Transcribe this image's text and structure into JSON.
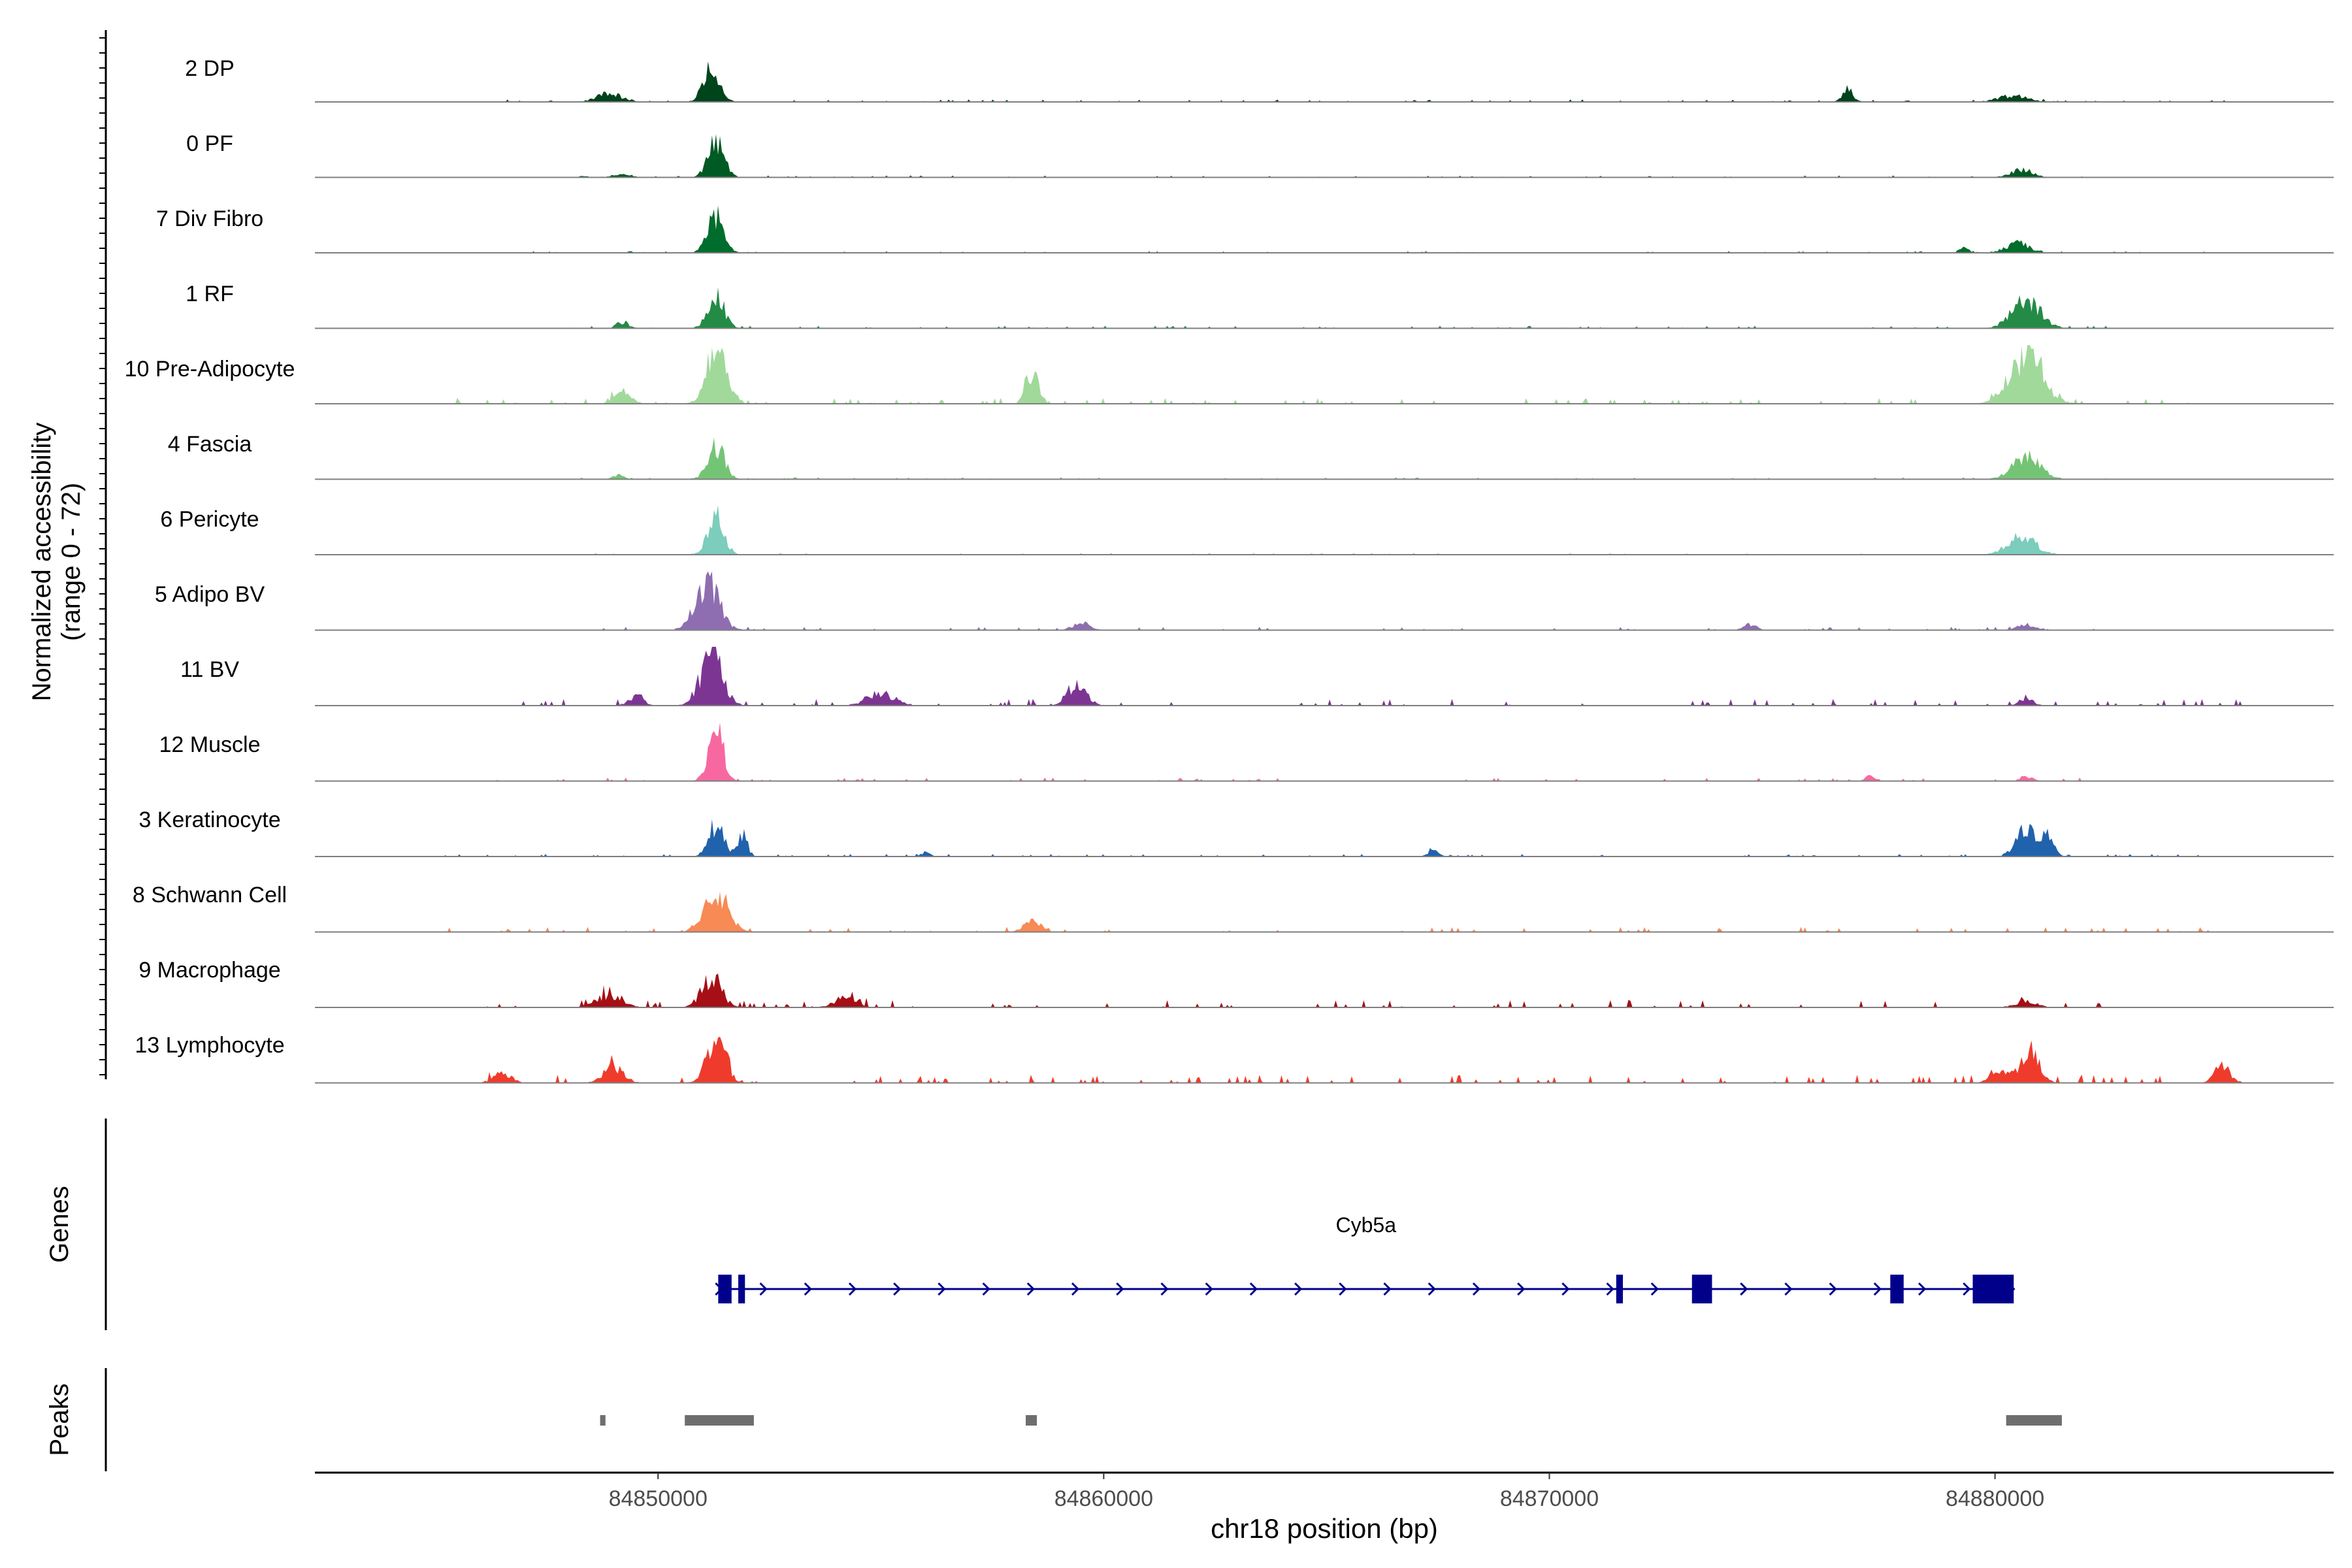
{
  "chart_data": {
    "type": "area",
    "ylabel_line1": "Normalized accessibility",
    "ylabel_line2": "(range 0 - 72)",
    "xlabel": "chr18 position (bp)",
    "xlim": [
      84842300,
      84887600
    ],
    "xticks": [
      84850000,
      84860000,
      84870000,
      84880000
    ],
    "xtick_labels": [
      "84850000",
      "84860000",
      "84870000",
      "84880000"
    ],
    "genes_label": "Genes",
    "peaks_label": "Peaks",
    "gene": {
      "name": "Cyb5a",
      "start": 84851350,
      "end": 84880420,
      "strand": "+",
      "exons": [
        [
          84851350,
          84851650
        ],
        [
          84851800,
          84851950
        ],
        [
          84871500,
          84871650
        ],
        [
          84873200,
          84873650
        ],
        [
          84877650,
          84877950
        ],
        [
          84879500,
          84880420
        ]
      ]
    },
    "peaks": [
      [
        84848700,
        84848820
      ],
      [
        84850600,
        84852150
      ],
      [
        84858250,
        84858500
      ],
      [
        84880250,
        84881500
      ]
    ],
    "tracks": [
      {
        "label": "2 DP",
        "color": "#00441b",
        "peaks": [
          [
            84848900,
            280,
            12
          ],
          [
            84851200,
            180,
            50
          ],
          [
            84876700,
            120,
            18
          ],
          [
            84880400,
            320,
            9
          ]
        ],
        "noise": 1.5,
        "noise_extent": [
          84846000,
          84885500
        ],
        "seed": 11
      },
      {
        "label": "0 PF",
        "color": "#005a24",
        "peaks": [
          [
            84851300,
            180,
            50
          ],
          [
            84880600,
            240,
            12
          ],
          [
            84849200,
            200,
            4
          ]
        ],
        "noise": 1.2,
        "noise_extent": [
          84848000,
          84882500
        ],
        "seed": 12
      },
      {
        "label": "7 Div Fibro",
        "color": "#006d2c",
        "peaks": [
          [
            84851300,
            180,
            55
          ],
          [
            84880500,
            260,
            14
          ],
          [
            84879300,
            100,
            8
          ]
        ],
        "noise": 1.0,
        "noise_extent": [
          84846000,
          84885500
        ],
        "seed": 13
      },
      {
        "label": "1 RF",
        "color": "#238b45",
        "peaks": [
          [
            84851300,
            180,
            48
          ],
          [
            84880700,
            320,
            40
          ],
          [
            84849200,
            140,
            8
          ]
        ],
        "noise": 1.5,
        "noise_extent": [
          84848000,
          84882500
        ],
        "seed": 14
      },
      {
        "label": "10 Pre-Adipocyte",
        "color": "#a1d99b",
        "peaks": [
          [
            84851300,
            220,
            75
          ],
          [
            84858400,
            140,
            45
          ],
          [
            84880700,
            360,
            70
          ],
          [
            84849200,
            180,
            20
          ]
        ],
        "noise": 3.5,
        "noise_extent": [
          84845000,
          84886500
        ],
        "seed": 15
      },
      {
        "label": "4 Fascia",
        "color": "#74c476",
        "peaks": [
          [
            84851300,
            180,
            50
          ],
          [
            84880700,
            300,
            34
          ],
          [
            84849100,
            120,
            6
          ]
        ],
        "noise": 1.2,
        "noise_extent": [
          84848000,
          84882500
        ],
        "seed": 16
      },
      {
        "label": "6 Pericyte",
        "color": "#7ccdbb",
        "peaks": [
          [
            84851300,
            180,
            55
          ],
          [
            84880600,
            300,
            28
          ]
        ],
        "noise": 1.0,
        "noise_extent": [
          84848000,
          84882500
        ],
        "seed": 17
      },
      {
        "label": "5 Adipo BV",
        "color": "#8e6eb1",
        "peaks": [
          [
            84851100,
            260,
            72
          ],
          [
            84859500,
            200,
            10
          ],
          [
            84874500,
            150,
            8
          ],
          [
            84880700,
            200,
            8
          ]
        ],
        "noise": 2.0,
        "noise_extent": [
          84848000,
          84882500
        ],
        "seed": 18
      },
      {
        "label": "11 BV",
        "color": "#7d3594",
        "peaks": [
          [
            84851200,
            240,
            75
          ],
          [
            84859400,
            220,
            28
          ],
          [
            84855000,
            300,
            18
          ],
          [
            84849500,
            160,
            14
          ],
          [
            84880700,
            160,
            10
          ]
        ],
        "noise": 4.0,
        "noise_extent": [
          84846000,
          84885500
        ],
        "seed": 19
      },
      {
        "label": "12 Muscle",
        "color": "#f768a1",
        "peaks": [
          [
            84851300,
            160,
            80
          ],
          [
            84877200,
            100,
            8
          ],
          [
            84880700,
            140,
            7
          ]
        ],
        "noise": 2.0,
        "noise_extent": [
          84846000,
          84882500
        ],
        "seed": 20
      },
      {
        "label": "3 Keratinocyte",
        "color": "#2162ac",
        "peaks": [
          [
            84851300,
            170,
            48
          ],
          [
            84851900,
            110,
            30
          ],
          [
            84880700,
            220,
            38
          ],
          [
            84881200,
            130,
            30
          ],
          [
            84867400,
            120,
            8
          ],
          [
            84856000,
            100,
            6
          ]
        ],
        "noise": 1.5,
        "noise_extent": [
          84845000,
          84885500
        ],
        "seed": 21
      },
      {
        "label": "8 Schwann Cell",
        "color": "#f78a55",
        "peaks": [
          [
            84851300,
            260,
            58
          ],
          [
            84858400,
            180,
            16
          ]
        ],
        "noise": 3.0,
        "noise_extent": [
          84844500,
          84885000
        ],
        "seed": 22
      },
      {
        "label": "9 Macrophage",
        "color": "#a50f15",
        "peaks": [
          [
            84851200,
            220,
            45
          ],
          [
            84848900,
            280,
            18
          ],
          [
            84854200,
            250,
            14
          ],
          [
            84880700,
            220,
            10
          ]
        ],
        "noise": 4.5,
        "noise_extent": [
          84846000,
          84882500
        ],
        "seed": 23
      },
      {
        "label": "13 Lymphocyte",
        "color": "#ef3b2c",
        "peaks": [
          [
            84851300,
            200,
            70
          ],
          [
            84880800,
            200,
            45
          ],
          [
            84885100,
            180,
            25
          ],
          [
            84849000,
            220,
            24
          ],
          [
            84846500,
            200,
            14
          ],
          [
            84880200,
            260,
            15
          ]
        ],
        "noise": 5.0,
        "noise_extent": [
          84845500,
          84885500
        ],
        "seed": 24
      }
    ]
  }
}
